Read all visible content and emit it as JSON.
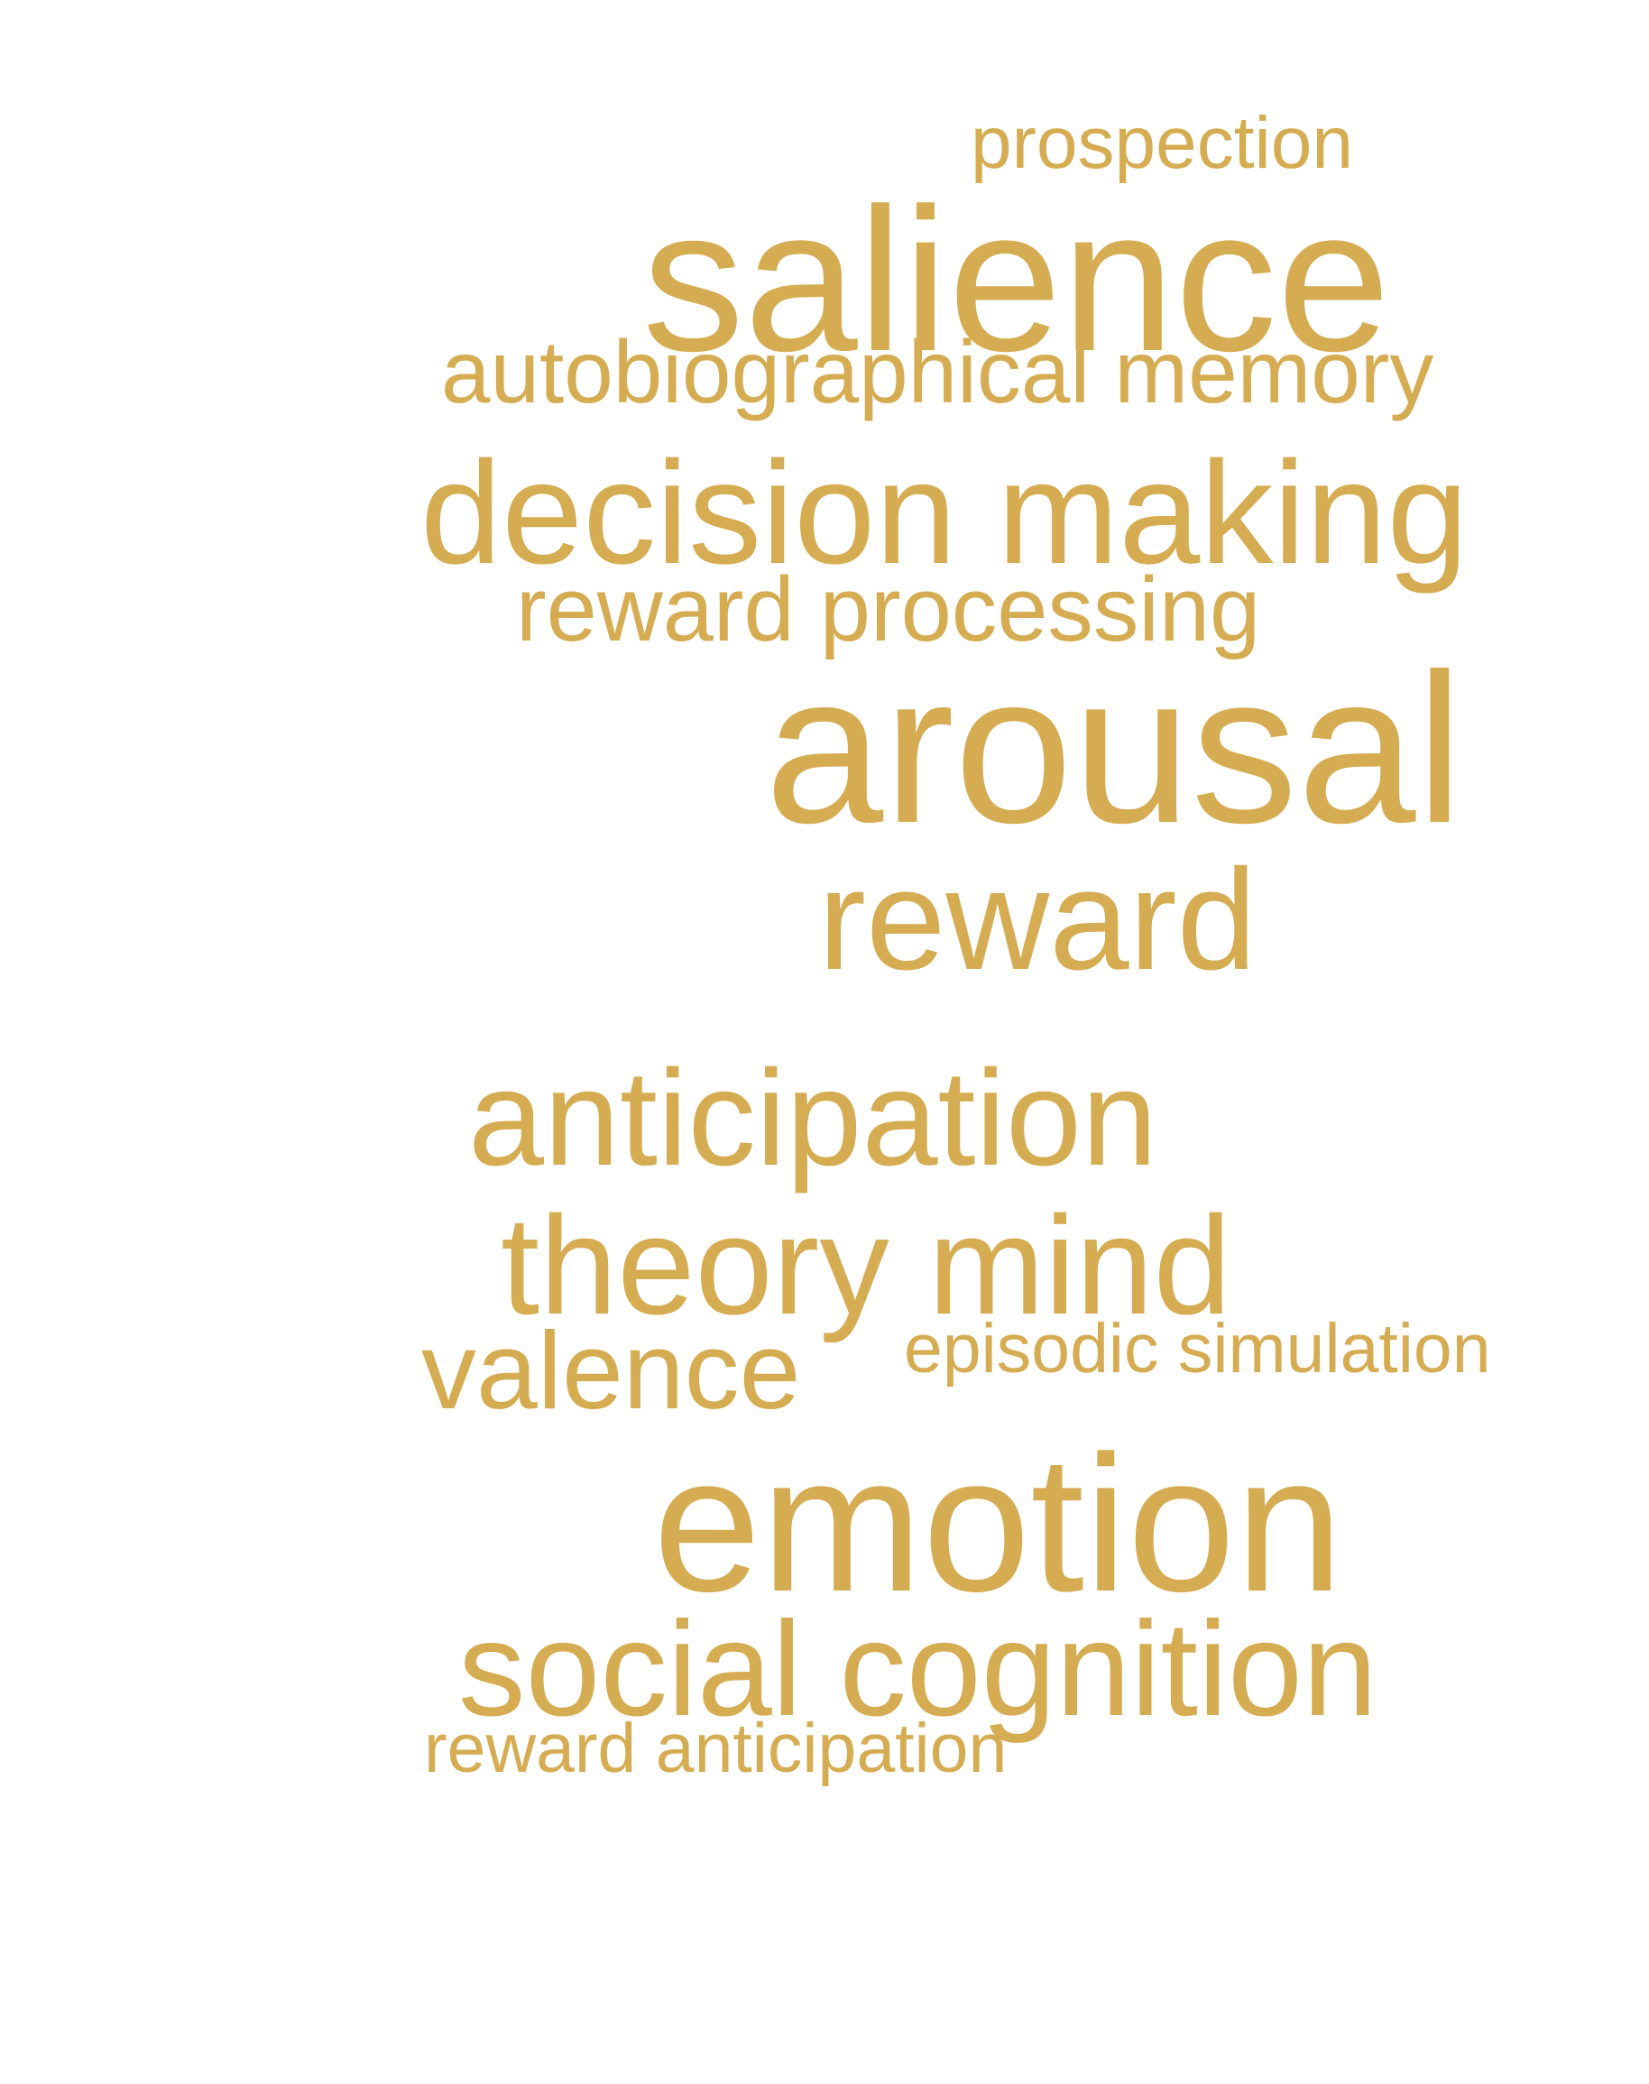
{
  "word_cloud": {
    "color": "#D6AC52",
    "words": [
      {
        "id": "prospection",
        "text": "prospection"
      },
      {
        "id": "salience",
        "text": "salience"
      },
      {
        "id": "autobiographical_memory",
        "text": "autobiographical memory"
      },
      {
        "id": "decision_making",
        "text": "decision making"
      },
      {
        "id": "reward_processing",
        "text": "reward processing"
      },
      {
        "id": "arousal",
        "text": "arousal"
      },
      {
        "id": "reward",
        "text": "reward"
      },
      {
        "id": "anticipation",
        "text": "anticipation"
      },
      {
        "id": "theory_mind",
        "text": "theory mind"
      },
      {
        "id": "valence",
        "text": "valence"
      },
      {
        "id": "episodic_simulation",
        "text": "episodic simulation"
      },
      {
        "id": "emotion",
        "text": "emotion"
      },
      {
        "id": "social_cognition",
        "text": "social cognition"
      },
      {
        "id": "reward_anticipation",
        "text": "reward anticipation"
      }
    ]
  }
}
